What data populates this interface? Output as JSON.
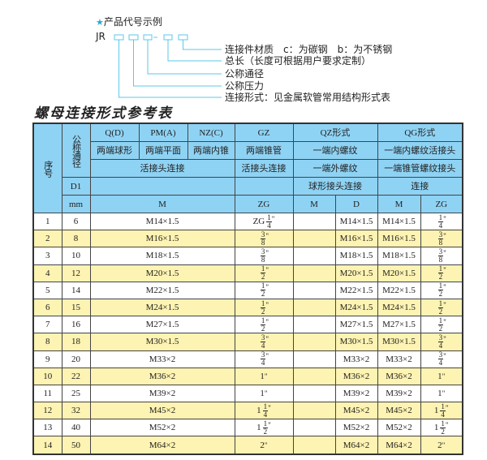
{
  "code_example": {
    "title": "产品代号示例",
    "star_icon": "star-icon",
    "prefix": "JR",
    "dash": "-",
    "line_color": "#5bc8e8",
    "legend": [
      "连接件材质　c：为碳钢　b：为不锈钢",
      "总长（长度可根据用户要求定制）",
      "公称通径",
      "公称压力",
      "连接形式：见金属软管常用结构形式表"
    ]
  },
  "table_title": "螺母连接形式参考表",
  "colors": {
    "header_bg": "#8fd3f4",
    "alt_row_bg": "#fdf3b2"
  },
  "header": {
    "seq": "序号",
    "nominal": "公称通径",
    "q": "Q(D)",
    "pm": "PM(A)",
    "nz": "NZ(C)",
    "gz": "GZ",
    "qz": "QZ形式",
    "qg": "QG形式",
    "q2": "两端球形",
    "pm2": "两端平面",
    "nz2": "两端内锥",
    "gz2": "两端锥管",
    "qz2": "一端内螺纹",
    "qg2": "一端内螺纹活接头",
    "conn3": "活接头连接",
    "gz3": "活接头连接",
    "qz3": "一端外螺纹",
    "qg3": "一端锥管螺纹接头",
    "d1": "D1",
    "qz4": "球形接头连接",
    "qg4": "连接",
    "mm": "mm",
    "m": "M",
    "zg": "ZG",
    "qzm": "M",
    "qzd": "D",
    "qgm": "M",
    "qgzg": "ZG"
  },
  "rows": [
    {
      "no": "1",
      "d1": "6",
      "m": "M14×1.5",
      "zg": {
        "w": "ZG",
        "n": "1",
        "d": "4"
      },
      "qzm": "",
      "qzd": "M14×1.5",
      "qgm": "M14×1.5",
      "qgzg": {
        "w": "",
        "n": "1",
        "d": "4"
      }
    },
    {
      "no": "2",
      "d1": "8",
      "m": "M16×1.5",
      "zg": {
        "w": "",
        "n": "3",
        "d": "8"
      },
      "qzm": "",
      "qzd": "M16×1.5",
      "qgm": "M16×1.5",
      "qgzg": {
        "w": "",
        "n": "3",
        "d": "8"
      }
    },
    {
      "no": "3",
      "d1": "10",
      "m": "M18×1.5",
      "zg": {
        "w": "",
        "n": "3",
        "d": "8"
      },
      "qzm": "",
      "qzd": "M18×1.5",
      "qgm": "M18×1.5",
      "qgzg": {
        "w": "",
        "n": "3",
        "d": "8"
      }
    },
    {
      "no": "4",
      "d1": "12",
      "m": "M20×1.5",
      "zg": {
        "w": "",
        "n": "1",
        "d": "2"
      },
      "qzm": "",
      "qzd": "M20×1.5",
      "qgm": "M20×1.5",
      "qgzg": {
        "w": "",
        "n": "1",
        "d": "2"
      }
    },
    {
      "no": "5",
      "d1": "14",
      "m": "M22×1.5",
      "zg": {
        "w": "",
        "n": "1",
        "d": "2"
      },
      "qzm": "",
      "qzd": "M22×1.5",
      "qgm": "M22×1.5",
      "qgzg": {
        "w": "",
        "n": "1",
        "d": "2"
      }
    },
    {
      "no": "6",
      "d1": "15",
      "m": "M24×1.5",
      "zg": {
        "w": "",
        "n": "1",
        "d": "2"
      },
      "qzm": "",
      "qzd": "M24×1.5",
      "qgm": "M24×1.5",
      "qgzg": {
        "w": "",
        "n": "1",
        "d": "2"
      }
    },
    {
      "no": "7",
      "d1": "16",
      "m": "M27×1.5",
      "zg": {
        "w": "",
        "n": "1",
        "d": "2"
      },
      "qzm": "",
      "qzd": "M27×1.5",
      "qgm": "M27×1.5",
      "qgzg": {
        "w": "",
        "n": "1",
        "d": "2"
      }
    },
    {
      "no": "8",
      "d1": "18",
      "m": "M30×1.5",
      "zg": {
        "w": "",
        "n": "3",
        "d": "4"
      },
      "qzm": "",
      "qzd": "M30×1.5",
      "qgm": "M30×1.5",
      "qgzg": {
        "w": "",
        "n": "3",
        "d": "4"
      }
    },
    {
      "no": "9",
      "d1": "20",
      "m": "M33×2",
      "zg": {
        "w": "",
        "n": "3",
        "d": "4"
      },
      "qzm": "",
      "qzd": "M33×2",
      "qgm": "M33×2",
      "qgzg": {
        "w": "",
        "n": "3",
        "d": "4"
      }
    },
    {
      "no": "10",
      "d1": "22",
      "m": "M36×2",
      "zg": {
        "w": "1"
      },
      "qzm": "",
      "qzd": "M36×2",
      "qgm": "M36×2",
      "qgzg": {
        "w": "1"
      }
    },
    {
      "no": "11",
      "d1": "25",
      "m": "M39×2",
      "zg": {
        "w": "1"
      },
      "qzm": "",
      "qzd": "M39×2",
      "qgm": "M39×2",
      "qgzg": {
        "w": "1"
      }
    },
    {
      "no": "12",
      "d1": "32",
      "m": "M45×2",
      "zg": {
        "w": "1",
        "n": "1",
        "d": "4"
      },
      "qzm": "",
      "qzd": "M45×2",
      "qgm": "M45×2",
      "qgzg": {
        "w": "1",
        "n": "1",
        "d": "4"
      }
    },
    {
      "no": "13",
      "d1": "40",
      "m": "M52×2",
      "zg": {
        "w": "1",
        "n": "1",
        "d": "2"
      },
      "qzm": "",
      "qzd": "M52×2",
      "qgm": "M52×2",
      "qgzg": {
        "w": "1",
        "n": "1",
        "d": "2"
      }
    },
    {
      "no": "14",
      "d1": "50",
      "m": "M64×2",
      "zg": {
        "w": "2"
      },
      "qzm": "",
      "qzd": "M64×2",
      "qgm": "M64×2",
      "qgzg": {
        "w": "2"
      }
    }
  ],
  "inch_mark": "\""
}
